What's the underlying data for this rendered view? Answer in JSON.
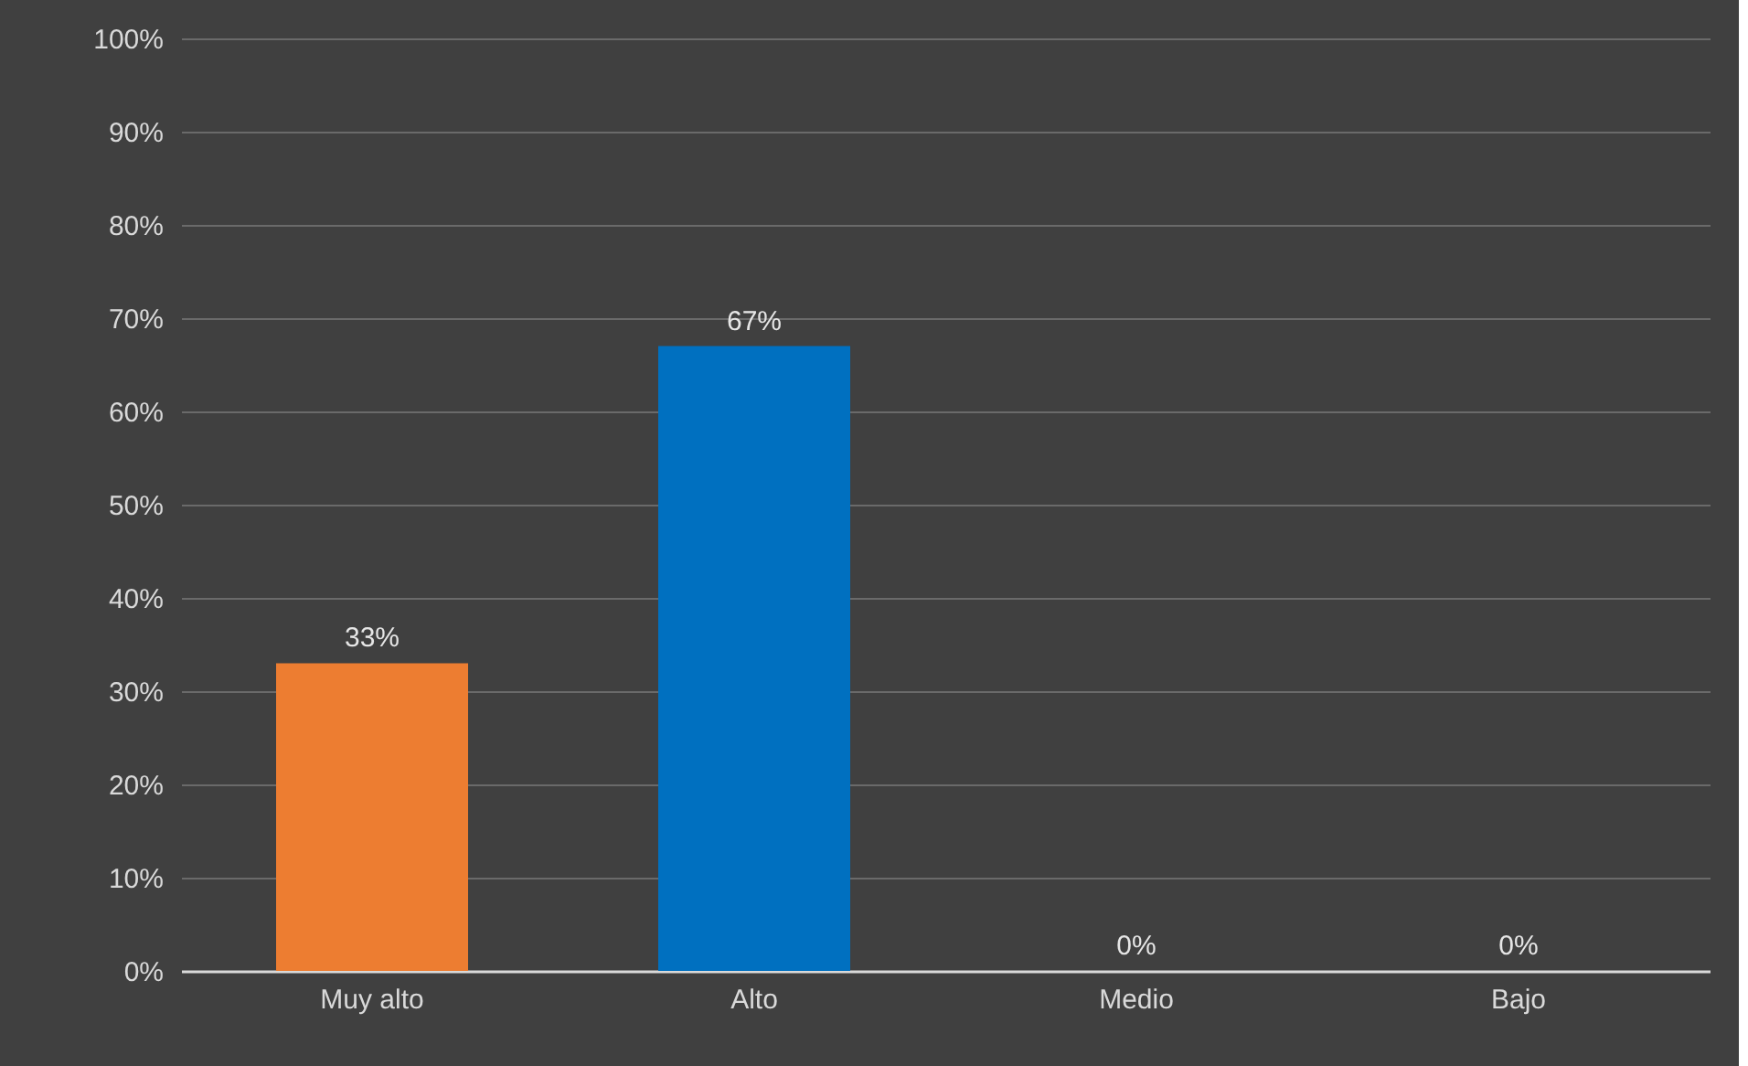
{
  "chart_data": {
    "type": "bar",
    "categories": [
      "Muy alto",
      "Alto",
      "Medio",
      "Bajo"
    ],
    "values": [
      33,
      67,
      0,
      0
    ],
    "colors": [
      "#ed7d31",
      "#0070c0",
      "#a5a5a5",
      "#ffc000"
    ],
    "value_labels": [
      "33%",
      "67%",
      "0%",
      "0%"
    ],
    "ylim": [
      0,
      100
    ],
    "yticks": [
      {
        "value": 0,
        "label": "0%"
      },
      {
        "value": 10,
        "label": "10%"
      },
      {
        "value": 20,
        "label": "20%"
      },
      {
        "value": 30,
        "label": "30%"
      },
      {
        "value": 40,
        "label": "40%"
      },
      {
        "value": 50,
        "label": "50%"
      },
      {
        "value": 60,
        "label": "60%"
      },
      {
        "value": 70,
        "label": "70%"
      },
      {
        "value": 80,
        "label": "80%"
      },
      {
        "value": 90,
        "label": "90%"
      },
      {
        "value": 100,
        "label": "100%"
      }
    ],
    "grid": "y"
  }
}
